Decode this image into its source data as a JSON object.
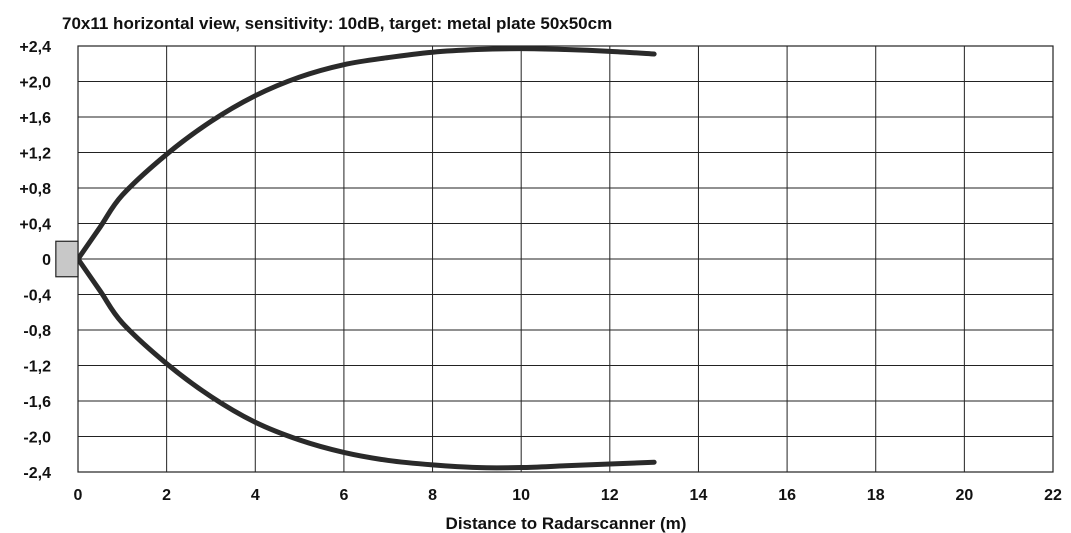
{
  "chart_data": {
    "type": "line",
    "title": "70x11 horizontal view, sensitivity: 10dB, target: metal plate 50x50cm",
    "xlabel": "Distance to Radarscanner (m)",
    "ylabel": "",
    "xlim": [
      0,
      22
    ],
    "ylim": [
      -2.4,
      2.4
    ],
    "x_ticks": [
      0,
      2,
      4,
      6,
      8,
      10,
      12,
      14,
      16,
      18,
      20,
      22
    ],
    "x_tick_labels": [
      "0",
      "2",
      "4",
      "6",
      "8",
      "10",
      "12",
      "14",
      "16",
      "18",
      "20",
      "22"
    ],
    "y_ticks": [
      2.4,
      2.0,
      1.6,
      1.2,
      0.8,
      0.4,
      0,
      -0.4,
      -0.8,
      -1.2,
      -1.6,
      -2.0,
      -2.4
    ],
    "y_tick_labels": [
      "+2,4",
      "+2,0",
      "+1,6",
      "+1,2",
      "+0,8",
      "+0,4",
      "0",
      "-0,4",
      "-0,8",
      "-1,2",
      "-1,6",
      "-2,0",
      "-2,4"
    ],
    "grid": true,
    "colors": {
      "curve": "#2a2a2a",
      "grid": "#222222",
      "sensor_fill": "#c8c8c8"
    },
    "series": [
      {
        "x": [
          0,
          0.5,
          1,
          2,
          3,
          4,
          5,
          6,
          7,
          8,
          9,
          10,
          11,
          12,
          13
        ],
        "values": [
          0,
          0.36,
          0.72,
          1.18,
          1.55,
          1.84,
          2.05,
          2.19,
          2.27,
          2.33,
          2.36,
          2.37,
          2.36,
          2.34,
          2.31
        ]
      },
      {
        "x": [
          0,
          0.5,
          1,
          2,
          3,
          4,
          5,
          6,
          7,
          8,
          9,
          10,
          11,
          12,
          13
        ],
        "values": [
          0,
          -0.36,
          -0.72,
          -1.18,
          -1.55,
          -1.84,
          -2.04,
          -2.18,
          -2.27,
          -2.32,
          -2.35,
          -2.35,
          -2.33,
          -2.31,
          -2.29
        ]
      }
    ],
    "sensor": {
      "x_range": [
        -0.5,
        0
      ],
      "y_range": [
        -0.2,
        0.2
      ]
    }
  }
}
